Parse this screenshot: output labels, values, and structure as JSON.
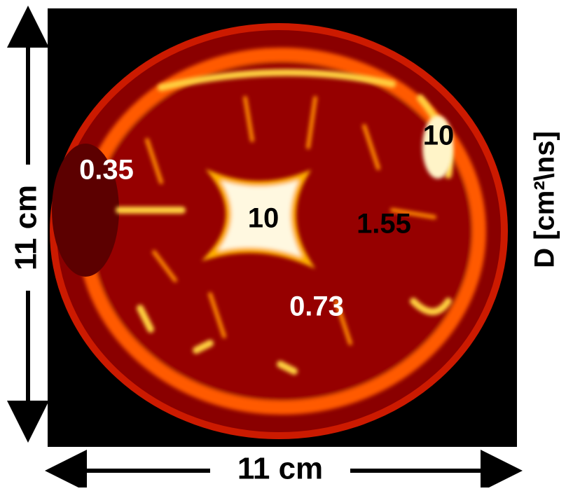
{
  "image": {
    "annotations": [
      {
        "text": "0.35"
      },
      {
        "text": "10"
      },
      {
        "text": "10"
      },
      {
        "text": "1.55"
      },
      {
        "text": "0.73"
      }
    ]
  },
  "axes": {
    "x_label": "11 cm",
    "y_label": "11 cm"
  },
  "colorbar_label": "D [cm²\\ns]"
}
